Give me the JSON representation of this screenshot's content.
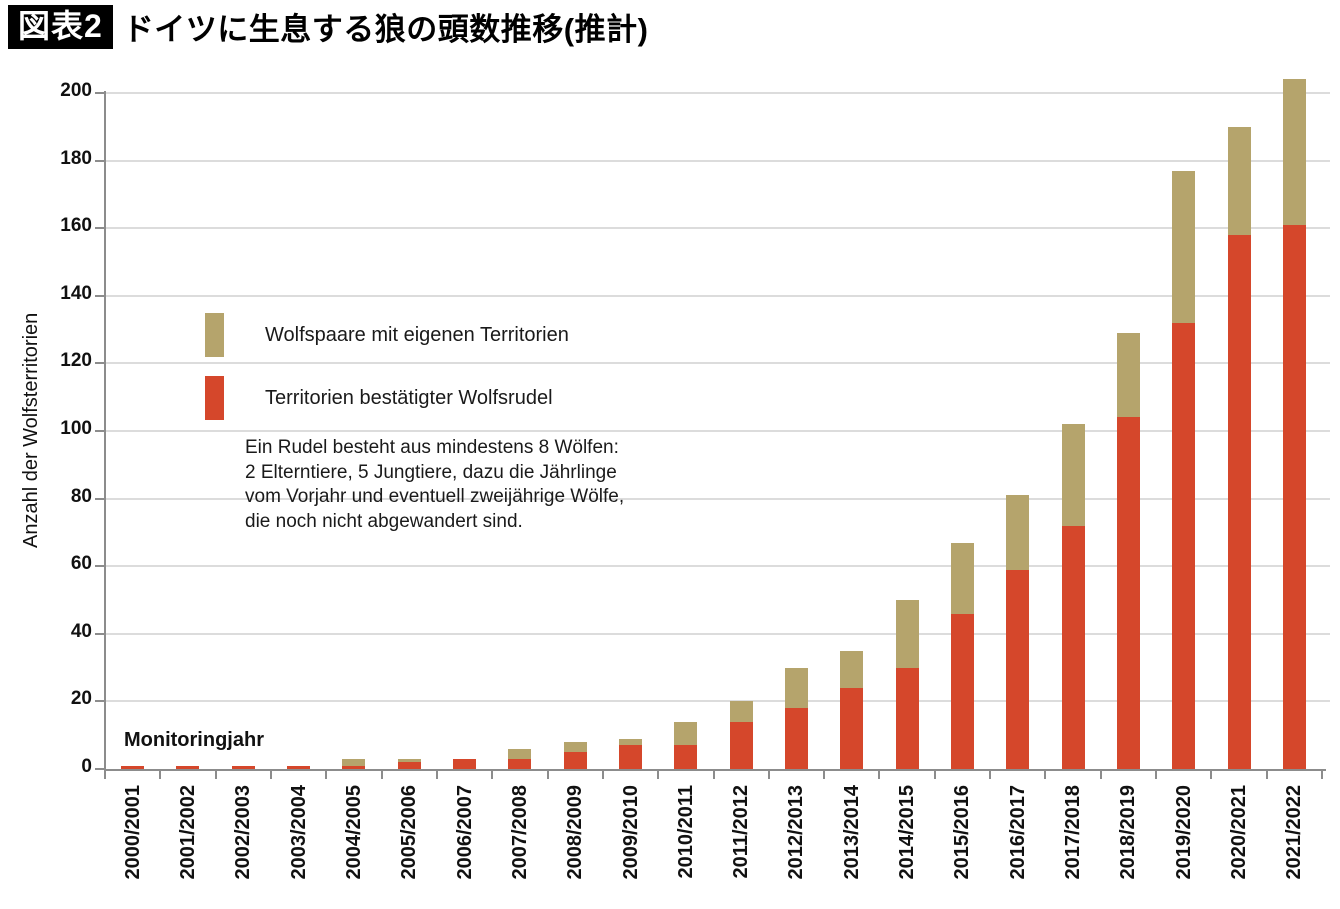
{
  "header": {
    "badge": "図表2",
    "title": "ドイツに生息する狼の頭数推移(推計)"
  },
  "chart_data": {
    "type": "bar",
    "stacked": true,
    "title": "ドイツに生息する狼の頭数推移(推計)",
    "xlabel": "Monitoringjahr",
    "ylabel": "Anzahl der Wolfsterritorien",
    "ylim": [
      0,
      200
    ],
    "ytick_step": 20,
    "grid": true,
    "legend_position": "upper-left-inside",
    "categories": [
      "2000/2001",
      "2001/2002",
      "2002/2003",
      "2003/2004",
      "2004/2005",
      "2005/2006",
      "2006/2007",
      "2007/2008",
      "2008/2009",
      "2009/2010",
      "2010/2011",
      "2011/2012",
      "2012/2013",
      "2013/2014",
      "2014/2015",
      "2015/2016",
      "2016/2017",
      "2017/2018",
      "2018/2019",
      "2019/2020",
      "2020/2021",
      "2021/2022"
    ],
    "series": [
      {
        "name": "Wolfspaare mit eigenen Territorien",
        "color": "#b5a46c",
        "values": [
          0,
          0,
          0,
          0,
          2,
          1,
          0,
          3,
          3,
          2,
          7,
          6,
          12,
          11,
          20,
          21,
          22,
          30,
          25,
          45,
          32,
          43
        ]
      },
      {
        "name": "Territorien bestätigter Wolfsrudel",
        "color": "#d5472b",
        "values": [
          1,
          1,
          1,
          1,
          1,
          2,
          3,
          3,
          5,
          7,
          7,
          14,
          18,
          24,
          30,
          46,
          59,
          72,
          104,
          132,
          158,
          161
        ]
      }
    ],
    "annotation": "Ein Rudel besteht aus mindestens 8 Wölfen:\n2 Elterntiere, 5 Jungtiere, dazu die Jährlinge\nvom Vorjahr und eventuell zweijährige Wölfe,\ndie noch nicht abgewandert sind."
  },
  "colors": {
    "pairs": "#b5a46c",
    "packs": "#d5472b",
    "gridline": "#dcdcdc",
    "axis": "#8c8c8c"
  }
}
